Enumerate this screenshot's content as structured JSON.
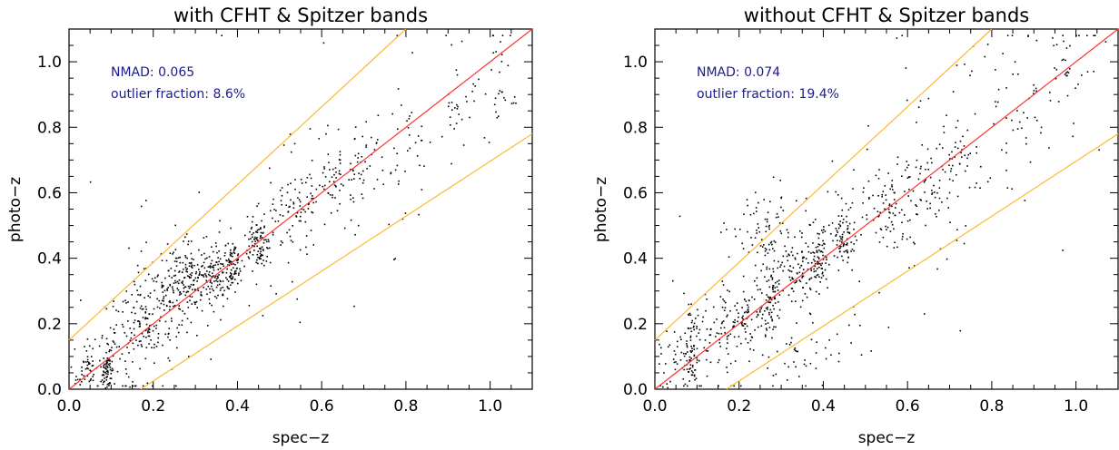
{
  "figure": {
    "panels": [
      {
        "title": "with CFHT & Spitzer bands",
        "xlabel": "spec−z",
        "ylabel": "photo−z",
        "annotations": [
          "NMAD: 0.065",
          "outlier fraction: 8.6%"
        ]
      },
      {
        "title": "without CFHT & Spitzer bands",
        "xlabel": "spec−z",
        "ylabel": "photo−z",
        "annotations": [
          "NMAD: 0.074",
          "outlier fraction: 19.4%"
        ]
      }
    ],
    "colors": {
      "identity_line": "#ff3333",
      "outlier_bounds": "#ffb733",
      "points": "#000000",
      "annotation_text": "#1c1c8c"
    }
  },
  "chart_data": [
    {
      "type": "scatter",
      "title": "with CFHT & Spitzer bands",
      "xlabel": "spec−z",
      "ylabel": "photo−z",
      "xlim": [
        0.0,
        1.1
      ],
      "ylim": [
        0.0,
        1.1
      ],
      "xticks": [
        "0.0",
        "0.2",
        "0.4",
        "0.6",
        "0.8",
        "1.0"
      ],
      "yticks": [
        "0.0",
        "0.2",
        "0.4",
        "0.6",
        "0.8",
        "1.0"
      ],
      "nmad": 0.065,
      "outlier_fraction_percent": 8.6,
      "lines": [
        {
          "role": "identity (photo-z = spec-z)",
          "color": "#ff3333",
          "x": [
            0.0,
            1.1
          ],
          "y": [
            0.0,
            1.1
          ]
        },
        {
          "role": "upper outlier bound",
          "color": "#ffb733",
          "x": [
            0.0,
            0.8
          ],
          "y": [
            0.15,
            1.1
          ]
        },
        {
          "role": "lower outlier bound",
          "color": "#ffb733",
          "x": [
            0.17,
            1.1
          ],
          "y": [
            0.0,
            0.78
          ]
        }
      ],
      "points": {
        "color": "#000000",
        "clusters": [
          {
            "x": 0.05,
            "y": 0.06,
            "n": 70,
            "sx": 0.03,
            "sy": 0.05
          },
          {
            "x": 0.09,
            "y": 0.05,
            "n": 80,
            "sx": 0.007,
            "sy": 0.04
          },
          {
            "x": 0.14,
            "y": 0.16,
            "n": 60,
            "sx": 0.03,
            "sy": 0.06
          },
          {
            "x": 0.2,
            "y": 0.24,
            "n": 110,
            "sx": 0.03,
            "sy": 0.07
          },
          {
            "x": 0.27,
            "y": 0.32,
            "n": 150,
            "sx": 0.03,
            "sy": 0.06
          },
          {
            "x": 0.34,
            "y": 0.36,
            "n": 130,
            "sx": 0.03,
            "sy": 0.05
          },
          {
            "x": 0.39,
            "y": 0.38,
            "n": 70,
            "sx": 0.01,
            "sy": 0.04
          },
          {
            "x": 0.45,
            "y": 0.44,
            "n": 90,
            "sx": 0.015,
            "sy": 0.04
          },
          {
            "x": 0.53,
            "y": 0.53,
            "n": 70,
            "sx": 0.03,
            "sy": 0.06
          },
          {
            "x": 0.62,
            "y": 0.62,
            "n": 60,
            "sx": 0.03,
            "sy": 0.06
          },
          {
            "x": 0.7,
            "y": 0.68,
            "n": 40,
            "sx": 0.03,
            "sy": 0.06
          },
          {
            "x": 0.8,
            "y": 0.76,
            "n": 20,
            "sx": 0.04,
            "sy": 0.06
          },
          {
            "x": 0.93,
            "y": 0.84,
            "n": 25,
            "sx": 0.02,
            "sy": 0.05
          },
          {
            "x": 1.02,
            "y": 0.94,
            "n": 20,
            "sx": 0.02,
            "sy": 0.06
          }
        ],
        "scattered_n": 120
      }
    },
    {
      "type": "scatter",
      "title": "without CFHT & Spitzer bands",
      "xlabel": "spec−z",
      "ylabel": "photo−z",
      "xlim": [
        0.0,
        1.1
      ],
      "ylim": [
        0.0,
        1.1
      ],
      "xticks": [
        "0.0",
        "0.2",
        "0.4",
        "0.6",
        "0.8",
        "1.0"
      ],
      "yticks": [
        "0.0",
        "0.2",
        "0.4",
        "0.6",
        "0.8",
        "1.0"
      ],
      "nmad": 0.074,
      "outlier_fraction_percent": 19.4,
      "lines": [
        {
          "role": "identity (photo-z = spec-z)",
          "color": "#ff3333",
          "x": [
            0.0,
            1.1
          ],
          "y": [
            0.0,
            1.1
          ]
        },
        {
          "role": "upper outlier bound",
          "color": "#ffb733",
          "x": [
            0.0,
            0.8
          ],
          "y": [
            0.15,
            1.1
          ]
        },
        {
          "role": "lower outlier bound",
          "color": "#ffb733",
          "x": [
            0.17,
            1.1
          ],
          "y": [
            0.0,
            0.78
          ]
        }
      ],
      "points": {
        "color": "#000000",
        "clusters": [
          {
            "x": 0.05,
            "y": 0.08,
            "n": 50,
            "sx": 0.03,
            "sy": 0.05
          },
          {
            "x": 0.09,
            "y": 0.12,
            "n": 60,
            "sx": 0.007,
            "sy": 0.06
          },
          {
            "x": 0.15,
            "y": 0.18,
            "n": 60,
            "sx": 0.03,
            "sy": 0.06
          },
          {
            "x": 0.22,
            "y": 0.22,
            "n": 80,
            "sx": 0.03,
            "sy": 0.06
          },
          {
            "x": 0.25,
            "y": 0.47,
            "n": 80,
            "sx": 0.04,
            "sy": 0.06
          },
          {
            "x": 0.28,
            "y": 0.26,
            "n": 60,
            "sx": 0.01,
            "sy": 0.06
          },
          {
            "x": 0.34,
            "y": 0.36,
            "n": 100,
            "sx": 0.03,
            "sy": 0.06
          },
          {
            "x": 0.39,
            "y": 0.4,
            "n": 60,
            "sx": 0.01,
            "sy": 0.05
          },
          {
            "x": 0.45,
            "y": 0.46,
            "n": 80,
            "sx": 0.015,
            "sy": 0.05
          },
          {
            "x": 0.55,
            "y": 0.54,
            "n": 70,
            "sx": 0.03,
            "sy": 0.06
          },
          {
            "x": 0.64,
            "y": 0.62,
            "n": 60,
            "sx": 0.03,
            "sy": 0.06
          },
          {
            "x": 0.72,
            "y": 0.7,
            "n": 40,
            "sx": 0.03,
            "sy": 0.06
          },
          {
            "x": 0.88,
            "y": 0.84,
            "n": 25,
            "sx": 0.04,
            "sy": 0.06
          },
          {
            "x": 0.98,
            "y": 0.98,
            "n": 25,
            "sx": 0.03,
            "sy": 0.06
          },
          {
            "x": 0.35,
            "y": 0.1,
            "n": 30,
            "sx": 0.05,
            "sy": 0.05
          }
        ],
        "scattered_n": 160
      }
    }
  ]
}
